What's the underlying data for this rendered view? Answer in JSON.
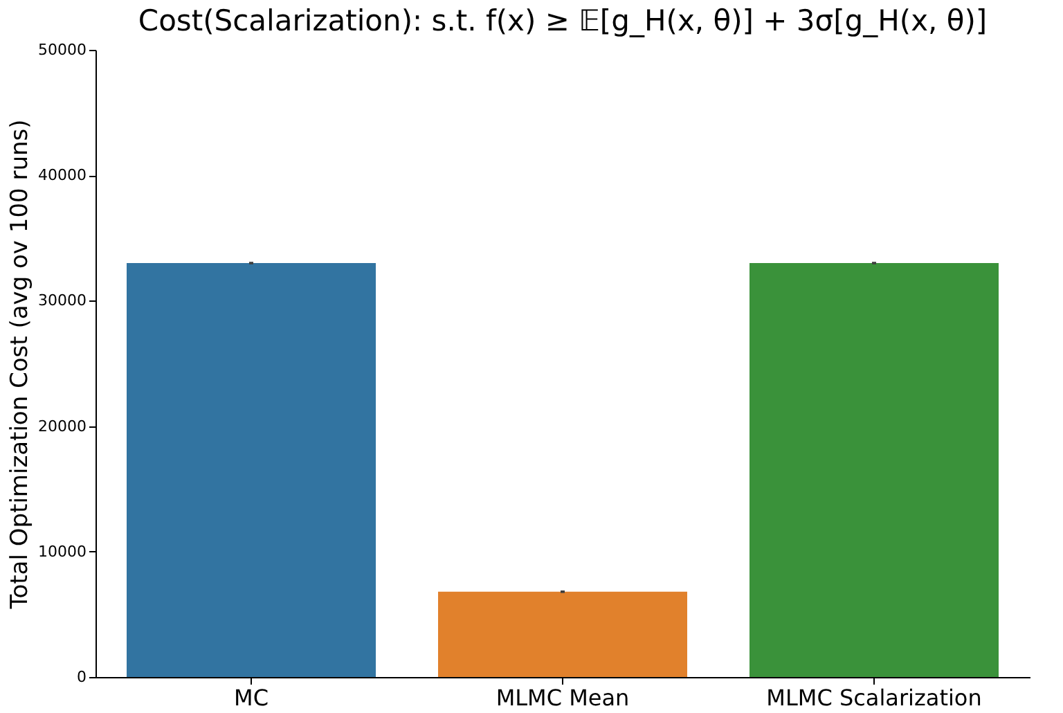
{
  "chart_data": {
    "type": "bar",
    "title": "Cost(Scalarization): s.t. f(x) ≥ 𝔼[g_H(x, θ)] + 3σ[g_H(x, θ)]",
    "ylabel": "Total Optimization Cost (avg ov 100 runs)",
    "categories": [
      "MC",
      "MLMC Mean",
      "MLMC Scalarization"
    ],
    "values": [
      33000,
      6800,
      33000
    ],
    "colors": [
      "#3274a1",
      "#e1812c",
      "#3a923a"
    ],
    "errors": [
      100,
      100,
      100
    ],
    "ylim": [
      0,
      50000
    ],
    "yticks": [
      0,
      10000,
      20000,
      30000,
      40000,
      50000
    ],
    "grid": false
  }
}
